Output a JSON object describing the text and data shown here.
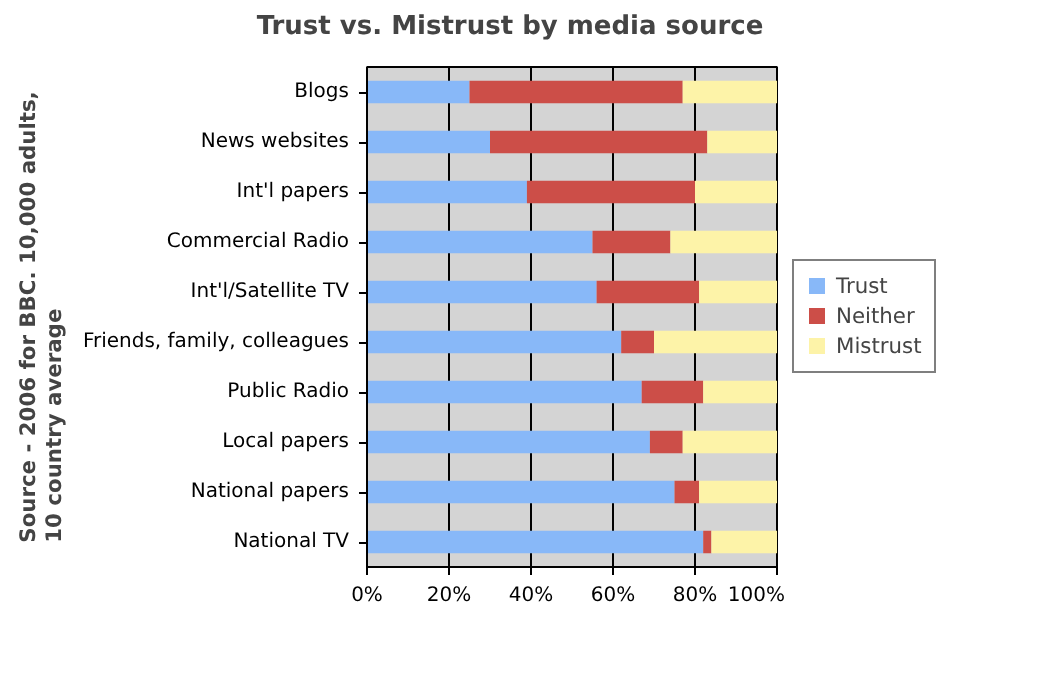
{
  "chart_data": {
    "type": "bar",
    "orientation": "horizontal",
    "stacked": true,
    "title": "Trust vs. Mistrust by media source",
    "ylabel": "Source - 2006 for BBC. 10,000 adults, 10 country average",
    "categories": [
      "Blogs",
      "News websites",
      "Int'l papers",
      "Commercial Radio",
      "Int'l/Satellite TV",
      "Friends, family, colleagues",
      "Public Radio",
      "Local papers",
      "National papers",
      "National TV"
    ],
    "series": [
      {
        "name": "Trust",
        "color": "#88b8f8",
        "values": [
          25,
          30,
          39,
          55,
          56,
          62,
          67,
          69,
          75,
          82
        ]
      },
      {
        "name": "Neither",
        "color": "#cc4e48",
        "values": [
          52,
          53,
          41,
          19,
          25,
          8,
          15,
          8,
          6,
          2
        ]
      },
      {
        "name": "Mistrust",
        "color": "#fdf3a8",
        "values": [
          23,
          17,
          20,
          26,
          19,
          30,
          18,
          23,
          19,
          16
        ]
      }
    ],
    "xlim": [
      0,
      100
    ],
    "xticks": [
      {
        "value": 0,
        "label": "0%"
      },
      {
        "value": 20,
        "label": "20%"
      },
      {
        "value": 40,
        "label": "40%"
      },
      {
        "value": 60,
        "label": "60%"
      },
      {
        "value": 80,
        "label": "80%"
      },
      {
        "value": 100,
        "label": "100%"
      }
    ],
    "grid": "x",
    "legend": "right"
  }
}
